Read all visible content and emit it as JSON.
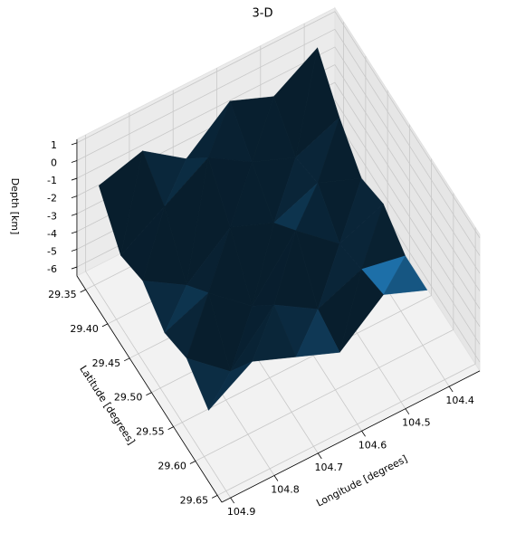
{
  "chart_data": {
    "type": "surface3d",
    "title": "3-D",
    "xlabel": "Longitude [degrees]",
    "ylabel": "Latitude [degrees]",
    "zlabel": "Depth [km]",
    "color": "#1f77b4",
    "x": [
      104.9,
      104.8,
      104.7,
      104.6,
      104.5,
      104.4
    ],
    "y": [
      29.36,
      29.41,
      29.46,
      29.51,
      29.56,
      29.61
    ],
    "z": [
      [
        -0.5,
        0.2,
        -1.5,
        0.5,
        -0.5,
        1.0
      ],
      [
        -2.5,
        -1.0,
        0.5,
        -1.0,
        -2.0,
        -1.0
      ],
      [
        -2.0,
        -3.5,
        -1.5,
        -2.5,
        -1.5,
        -2.5
      ],
      [
        -3.0,
        -2.0,
        -4.0,
        -1.0,
        -3.0,
        -2.0
      ],
      [
        -2.5,
        -4.5,
        -2.0,
        -3.5,
        -2.5,
        -3.0
      ],
      [
        -3.5,
        -2.0,
        -3.0,
        -4.0,
        -2.0,
        -3.0
      ]
    ],
    "xlim": [
      104.33,
      104.92
    ],
    "ylim": [
      29.33,
      29.66
    ],
    "zlim": [
      -6.5,
      1.2
    ],
    "xticks": [
      104.4,
      104.5,
      104.6,
      104.7,
      104.8,
      104.9
    ],
    "yticks": [
      29.35,
      {
        "value": 29.4,
        "label": "29.40"
      },
      29.45,
      {
        "value": 29.5,
        "label": "29.50"
      },
      29.55,
      {
        "value": 29.6,
        "label": "29.60"
      },
      29.65
    ],
    "zticks": [
      -6,
      -5,
      -4,
      -3,
      -2,
      -1,
      0,
      1
    ],
    "grid": true
  }
}
